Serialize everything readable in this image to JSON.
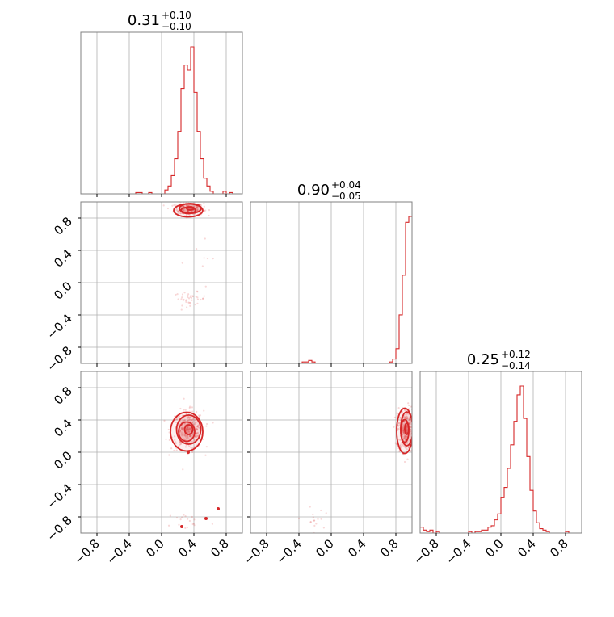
{
  "chart_data": {
    "type": "corner",
    "color": "#d62728",
    "grid": true,
    "axis_range": [
      -1.0,
      1.0
    ],
    "ticks": [
      "−0.8",
      "−0.4",
      "0.0",
      "0.4",
      "0.8"
    ],
    "tick_values": [
      -0.8,
      -0.4,
      0.0,
      0.4,
      0.8
    ],
    "parameters": [
      {
        "title_center": "0.31",
        "title_upper": "+0.10",
        "title_lower": "−0.10",
        "median": 0.31,
        "histogram_bin_edges_start": -1.0,
        "histogram_bin_width": 0.04,
        "histogram": [
          0,
          0,
          0,
          0,
          0,
          0,
          0,
          0,
          0,
          0,
          0,
          0,
          0,
          0,
          0,
          0,
          0,
          1,
          1,
          0,
          0,
          1,
          0,
          0,
          0,
          0,
          3,
          6,
          14,
          27,
          48,
          81,
          99,
          95,
          113,
          78,
          48,
          27,
          12,
          6,
          2,
          0,
          0,
          0,
          2,
          0,
          1,
          0,
          0,
          0
        ]
      },
      {
        "title_center": "0.90",
        "title_upper": "+0.04",
        "title_lower": "−0.05",
        "median": 0.9,
        "histogram_bin_edges_start": -1.0,
        "histogram_bin_width": 0.04,
        "histogram": [
          0,
          0,
          0,
          0,
          0,
          0,
          0,
          0,
          0,
          0,
          0,
          0,
          0,
          0,
          0,
          0,
          1,
          1,
          2,
          1,
          0,
          0,
          0,
          0,
          0,
          0,
          0,
          0,
          0,
          0,
          0,
          0,
          0,
          0,
          0,
          0,
          0,
          0,
          0,
          0,
          0,
          0,
          0,
          1,
          3,
          10,
          33,
          60,
          96,
          100
        ]
      },
      {
        "title_center": "0.25",
        "title_upper": "+0.12",
        "title_lower": "−0.14",
        "median": 0.25,
        "histogram_bin_edges_start": -1.0,
        "histogram_bin_width": 0.04,
        "histogram": [
          4,
          2,
          1,
          2,
          0,
          1,
          0,
          0,
          0,
          0,
          0,
          0,
          0,
          0,
          0,
          1,
          0,
          1,
          1,
          2,
          2,
          4,
          5,
          9,
          13,
          24,
          31,
          44,
          60,
          76,
          94,
          100,
          78,
          52,
          29,
          15,
          7,
          3,
          2,
          1,
          0,
          0,
          0,
          0,
          0,
          1,
          0,
          0,
          0,
          0
        ]
      }
    ],
    "pairs": [
      {
        "x_param": 0,
        "y_param": 1,
        "clusters": [
          {
            "cx": 0.34,
            "cy": 0.91,
            "sx": 0.09,
            "sy": 0.04,
            "n": 260,
            "core": true
          },
          {
            "cx": 0.35,
            "cy": -0.2,
            "sx": 0.1,
            "sy": 0.04,
            "n": 40,
            "core": false
          },
          {
            "cx": 0.5,
            "cy": 0.3,
            "sx": 0.15,
            "sy": 0.2,
            "n": 8,
            "core": false
          }
        ]
      },
      {
        "x_param": 0,
        "y_param": 2,
        "clusters": [
          {
            "cx": 0.32,
            "cy": 0.27,
            "sx": 0.1,
            "sy": 0.12,
            "n": 320,
            "core": true
          },
          {
            "cx": 0.33,
            "cy": -0.85,
            "sx": 0.14,
            "sy": 0.06,
            "n": 18,
            "core": false
          }
        ],
        "isolated_points": [
          [
            0.25,
            -0.92
          ],
          [
            0.55,
            -0.82
          ],
          [
            0.7,
            -0.7
          ],
          [
            0.33,
            0.0
          ]
        ]
      },
      {
        "x_param": 1,
        "y_param": 2,
        "clusters": [
          {
            "cx": 0.92,
            "cy": 0.28,
            "sx": 0.05,
            "sy": 0.14,
            "n": 320,
            "core": true
          },
          {
            "cx": -0.22,
            "cy": -0.85,
            "sx": 0.06,
            "sy": 0.08,
            "n": 16,
            "core": false
          }
        ]
      }
    ]
  }
}
